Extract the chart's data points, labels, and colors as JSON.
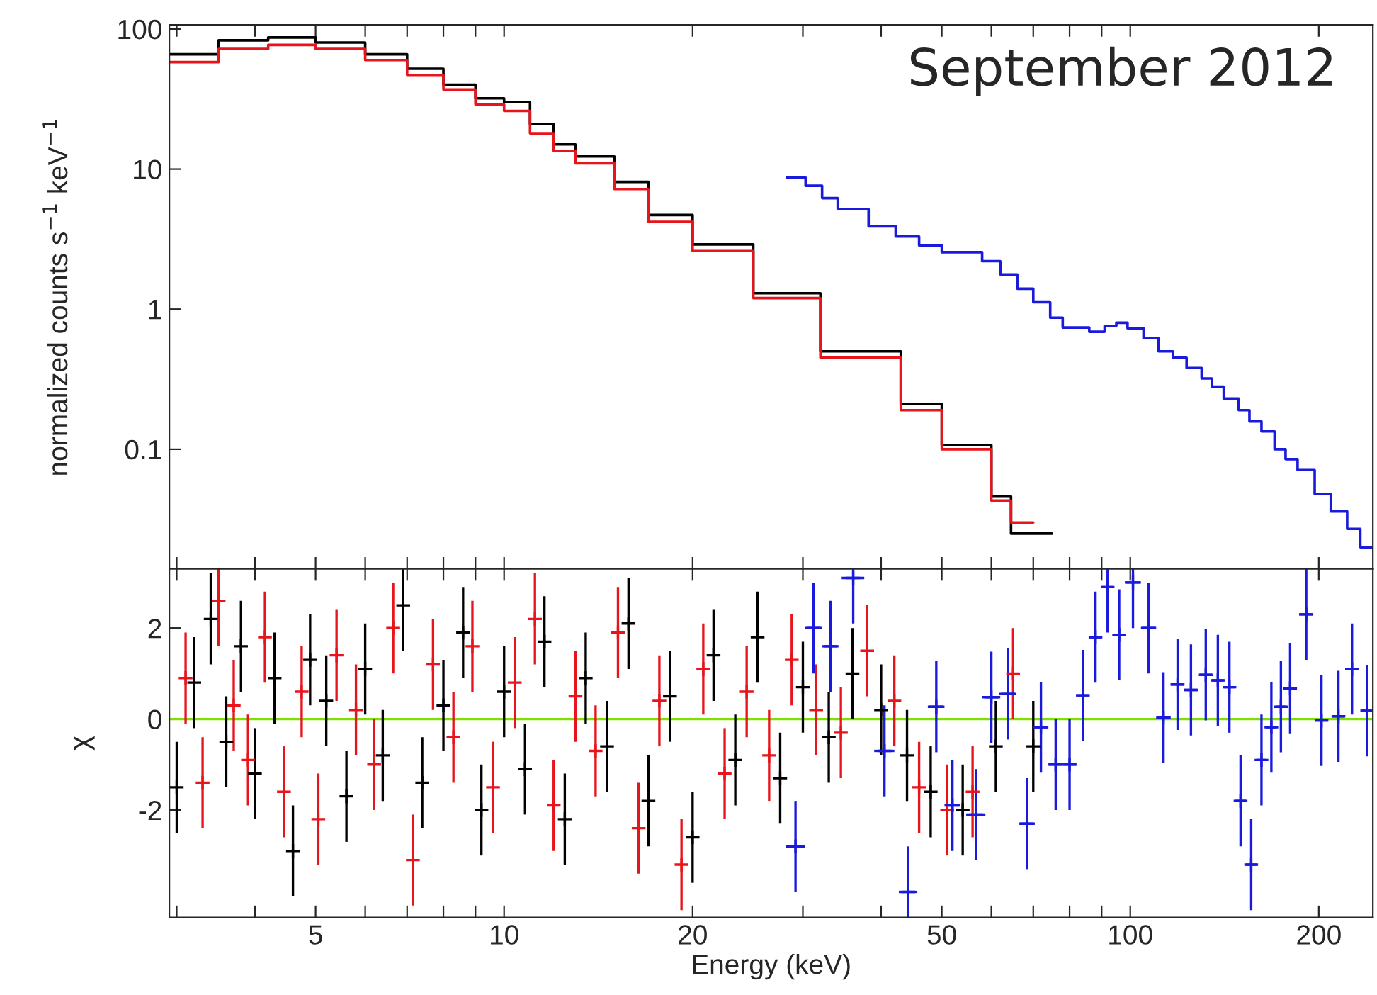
{
  "chart_data": [
    {
      "type": "step",
      "ylabel": "normalized counts s$^{−1}$ keV$^{−1}$",
      "annotations": [
        "September 2012"
      ],
      "log": "xy",
      "xlim": [
        2.92,
        244
      ],
      "ylim": [
        0.014,
        107
      ],
      "xticks": [
        {
          "value": 3,
          "label": null
        },
        {
          "value": 4,
          "label": null
        },
        {
          "value": 5,
          "label": null
        },
        {
          "value": 6,
          "label": null
        },
        {
          "value": 7,
          "label": null
        },
        {
          "value": 8,
          "label": null
        },
        {
          "value": 9,
          "label": null
        },
        {
          "value": 10,
          "label": null
        },
        {
          "value": 20,
          "label": null
        },
        {
          "value": 30,
          "label": null
        },
        {
          "value": 40,
          "label": null
        },
        {
          "value": 50,
          "label": null
        },
        {
          "value": 60,
          "label": null
        },
        {
          "value": 70,
          "label": null
        },
        {
          "value": 80,
          "label": null
        },
        {
          "value": 90,
          "label": null
        },
        {
          "value": 100,
          "label": null
        },
        {
          "value": 200,
          "label": null
        }
      ],
      "yticks": [
        0.1,
        1,
        10,
        100
      ],
      "tick_labels": "y",
      "series": [
        {
          "color": "#000000",
          "x": [
            2.92,
            3.5,
            4.2,
            5,
            6,
            7,
            8,
            9,
            10,
            11,
            12,
            13,
            15,
            17,
            20,
            25,
            32,
            43,
            50,
            60,
            64.5,
            75
          ],
          "values": [
            66,
            83,
            87,
            80,
            66,
            52,
            40,
            32,
            30,
            21,
            15,
            12.3,
            8.1,
            4.7,
            2.9,
            1.3,
            0.5,
            0.21,
            0.107,
            0.046,
            0.025,
            0.025
          ]
        },
        {
          "color": "#e8141c",
          "x": [
            2.92,
            3.5,
            4.2,
            5,
            6,
            7,
            8,
            9,
            10,
            11,
            12,
            13,
            15,
            17,
            20,
            25,
            32,
            43,
            50,
            60,
            64.5,
            70
          ],
          "values": [
            58,
            72,
            77,
            72,
            60,
            47,
            37,
            29,
            26,
            18,
            13.5,
            11,
            7.2,
            4.2,
            2.6,
            1.2,
            0.45,
            0.19,
            0.1,
            0.043,
            0.03,
            0.03
          ]
        },
        {
          "color": "#1a1adc",
          "x": [
            28.3,
            30.3,
            32.2,
            34.1,
            38.2,
            42.2,
            46,
            50,
            58,
            62,
            66,
            70,
            74.5,
            78,
            86,
            91,
            95,
            99,
            105,
            111,
            117,
            123,
            130,
            135,
            141,
            149,
            155,
            162,
            170,
            177,
            185,
            197,
            209,
            222,
            233,
            244
          ],
          "values": [
            8.7,
            7.6,
            6.2,
            5.2,
            3.9,
            3.3,
            2.85,
            2.55,
            2.2,
            1.77,
            1.4,
            1.12,
            0.87,
            0.74,
            0.69,
            0.76,
            0.8,
            0.73,
            0.62,
            0.5,
            0.45,
            0.38,
            0.32,
            0.28,
            0.23,
            0.19,
            0.158,
            0.134,
            0.1,
            0.085,
            0.071,
            0.048,
            0.036,
            0.027,
            0.02,
            0.02
          ]
        }
      ]
    },
    {
      "type": "scatter",
      "xlabel": "Energy (keV)",
      "ylabel": "χ",
      "log": "x",
      "xlim": [
        2.92,
        244
      ],
      "ylim": [
        -4.36,
        3.3
      ],
      "xticks": [
        {
          "value": 3,
          "label": null
        },
        {
          "value": 4,
          "label": null
        },
        5,
        {
          "value": 6,
          "label": null
        },
        {
          "value": 7,
          "label": null
        },
        {
          "value": 8,
          "label": null
        },
        {
          "value": 9,
          "label": null
        },
        10,
        20,
        {
          "value": 30,
          "label": null
        },
        {
          "value": 40,
          "label": null
        },
        50,
        {
          "value": 60,
          "label": null
        },
        {
          "value": 70,
          "label": null
        },
        {
          "value": 80,
          "label": null
        },
        {
          "value": 90,
          "label": null
        },
        100,
        200
      ],
      "yticks": [
        -2,
        0,
        2
      ],
      "marker": "cross",
      "ref_lines": [
        {
          "axis": "y",
          "value": 0,
          "color": "#7ee000"
        }
      ],
      "series": [
        {
          "color": "#000000",
          "x": [
            3.0,
            3.2,
            3.4,
            3.6,
            3.8,
            4.0,
            4.3,
            4.6,
            4.9,
            5.2,
            5.6,
            6.0,
            6.4,
            6.9,
            7.4,
            8.0,
            8.6,
            9.2,
            10,
            10.8,
            11.6,
            12.5,
            13.5,
            14.6,
            15.8,
            17,
            18.4,
            20,
            21.6,
            23.4,
            25.4,
            27.6,
            30,
            33,
            36,
            40,
            44,
            48,
            54,
            61,
            70
          ],
          "values": [
            -1.5,
            0.8,
            2.2,
            -0.5,
            1.6,
            -1.2,
            0.9,
            -2.9,
            1.3,
            0.4,
            -1.7,
            1.1,
            -0.8,
            2.5,
            -1.4,
            0.3,
            1.9,
            -2.0,
            0.6,
            -1.1,
            1.7,
            -2.2,
            0.9,
            -0.6,
            2.1,
            -1.8,
            0.5,
            -2.6,
            1.4,
            -0.9,
            1.8,
            -1.3,
            0.7,
            -0.4,
            1.0,
            0.2,
            -0.8,
            -1.6,
            -2.0,
            -0.6,
            -0.6
          ],
          "errors": [
            1,
            1,
            1,
            1,
            1,
            1,
            1,
            1,
            1,
            1,
            1,
            1,
            1,
            1,
            1,
            1,
            1,
            1,
            1,
            1,
            1,
            1,
            1,
            1,
            1,
            1,
            1,
            1,
            1,
            1,
            1,
            1,
            1,
            1,
            1,
            1,
            1,
            1,
            1,
            1,
            1
          ]
        },
        {
          "color": "#e8141c",
          "x": [
            3.1,
            3.3,
            3.5,
            3.7,
            3.9,
            4.15,
            4.45,
            4.75,
            5.05,
            5.4,
            5.8,
            6.2,
            6.65,
            7.15,
            7.7,
            8.3,
            8.9,
            9.6,
            10.4,
            11.2,
            12,
            13,
            14,
            15.2,
            16.4,
            17.7,
            19.2,
            20.8,
            22.5,
            24.4,
            26.5,
            28.8,
            31.5,
            34.5,
            38,
            42,
            46,
            51,
            56,
            65
          ],
          "values": [
            0.9,
            -1.4,
            2.6,
            0.3,
            -0.9,
            1.8,
            -1.6,
            0.6,
            -2.2,
            1.4,
            0.2,
            -1.0,
            2.0,
            -3.1,
            1.2,
            -0.4,
            1.6,
            -1.5,
            0.8,
            2.2,
            -1.9,
            0.5,
            -0.7,
            1.9,
            -2.4,
            0.4,
            -3.2,
            1.1,
            -1.2,
            0.6,
            -0.8,
            1.3,
            0.2,
            -0.3,
            1.5,
            0.4,
            -1.5,
            -2.0,
            -1.6,
            1.0
          ],
          "errors": [
            1,
            1,
            1,
            1,
            1,
            1,
            1,
            1,
            1,
            1,
            1,
            1,
            1,
            1,
            1,
            1,
            1,
            1,
            1,
            1,
            1,
            1,
            1,
            1,
            1,
            1,
            1,
            1,
            1,
            1,
            1,
            1,
            1,
            1,
            1,
            1,
            1,
            1,
            1,
            1
          ]
        },
        {
          "color": "#1a1adc",
          "x": [
            29.2,
            31.2,
            33.2,
            36.1,
            40.5,
            44.2,
            49,
            52,
            56.7,
            60,
            63.8,
            68.4,
            72,
            76,
            80,
            84,
            88,
            92,
            96,
            101,
            107,
            113,
            119,
            125,
            132,
            138,
            144,
            150,
            156,
            162,
            168,
            174,
            180,
            191,
            202,
            215,
            226,
            239
          ],
          "values": [
            -2.8,
            2.0,
            1.6,
            3.1,
            -0.7,
            -3.8,
            0.27,
            -1.9,
            -2.1,
            0.48,
            0.55,
            -2.3,
            -0.18,
            -1.0,
            -1.0,
            0.52,
            1.8,
            2.9,
            1.85,
            3.0,
            2.0,
            0.03,
            0.76,
            0.64,
            0.97,
            0.85,
            0.7,
            -1.8,
            -3.2,
            -0.9,
            -0.18,
            0.27,
            0.67,
            2.3,
            -0.03,
            0.06,
            1.1,
            0.18
          ],
          "errors": [
            1,
            1,
            1,
            1,
            1,
            1,
            1,
            1,
            1,
            1,
            1,
            1,
            1,
            1,
            1,
            1,
            1,
            1,
            1,
            1,
            1,
            1,
            1,
            1,
            1,
            1,
            1,
            1,
            1,
            1,
            1,
            1,
            1,
            1,
            1,
            1,
            1,
            1
          ],
          "xerrors": [
            1,
            1,
            1,
            1.5,
            1.5,
            1.5,
            1.5,
            1.5,
            2,
            2,
            2,
            2,
            2,
            2,
            2,
            2,
            2,
            2,
            2,
            3,
            3,
            3,
            3,
            3,
            3,
            3,
            3,
            3,
            3,
            3,
            3,
            3,
            3,
            5,
            5,
            5,
            5,
            5
          ]
        }
      ]
    }
  ]
}
